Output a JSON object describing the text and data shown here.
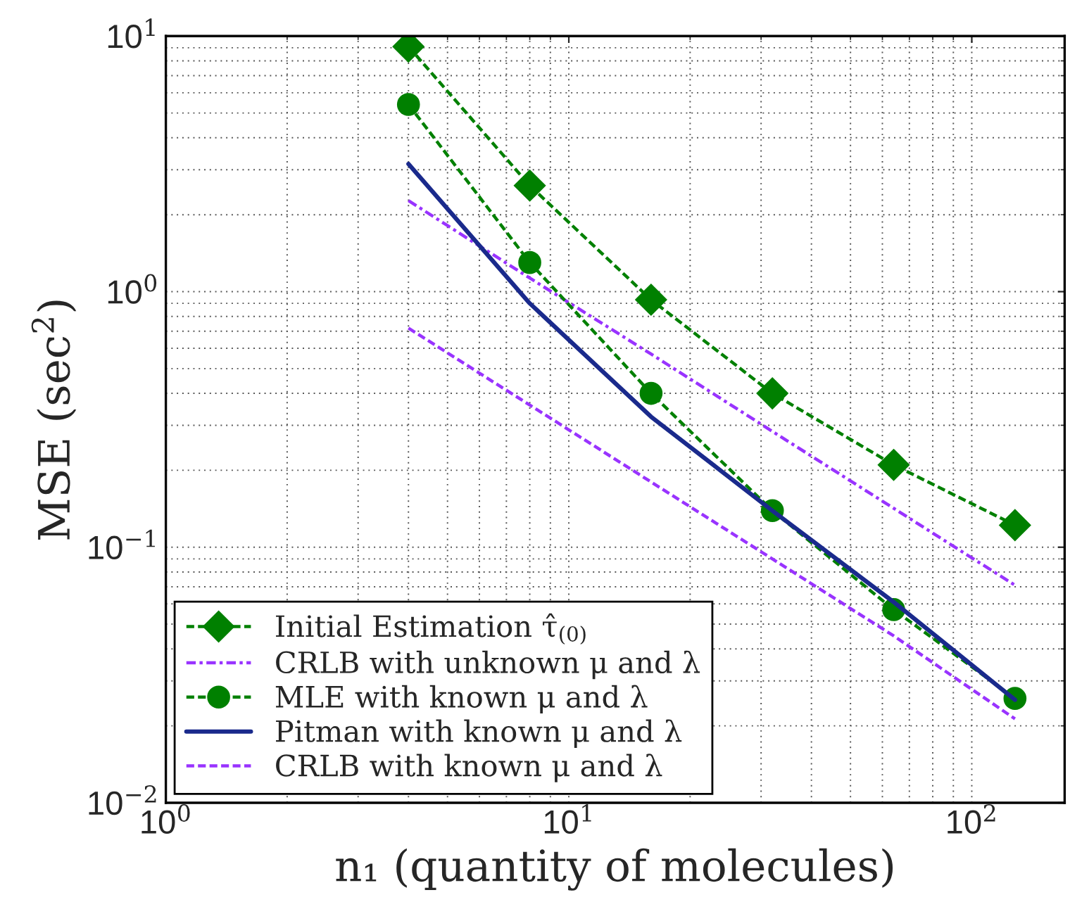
{
  "chart_data": {
    "type": "line",
    "xlabel": "n₁ (quantity of molecules)",
    "ylabel": "MSE (sec$^{2}$)",
    "x": [
      4,
      8,
      16,
      32,
      64,
      128
    ],
    "series": [
      {
        "name": "Initial Estimation τ̂$_{(0)}$",
        "color": "#008000",
        "marker": "diamond",
        "line_style": "dashed",
        "values": [
          9.1,
          2.6,
          0.93,
          0.4,
          0.21,
          0.122
        ]
      },
      {
        "name": "CRLB with unknown μ and λ",
        "color": "#9933ff",
        "marker": "none",
        "line_style": "dashdot",
        "values": [
          2.27,
          1.13,
          0.57,
          0.284,
          0.142,
          0.071
        ]
      },
      {
        "name": "MLE with known μ and λ",
        "color": "#008000",
        "marker": "circle",
        "line_style": "dashed",
        "values": [
          5.4,
          1.3,
          0.4,
          0.139,
          0.057,
          0.0256
        ]
      },
      {
        "name": "Pitman with known μ and λ",
        "color": "#1a2a8c",
        "marker": "none",
        "line_style": "solid",
        "values": [
          3.16,
          0.9,
          0.324,
          0.139,
          0.061,
          0.0253
        ]
      },
      {
        "name": "CRLB with known μ and λ",
        "color": "#9933ff",
        "marker": "none",
        "line_style": "dashed",
        "values": [
          0.72,
          0.36,
          0.18,
          0.09,
          0.045,
          0.0213
        ]
      }
    ],
    "log": "xy",
    "xlim": [
      1,
      170
    ],
    "ylim": [
      0.01,
      10
    ],
    "xticks": [
      {
        "value": 1,
        "label": "10$^{0}$"
      },
      {
        "value": 10,
        "label": "10$^{1}$"
      },
      {
        "value": 100,
        "label": "10$^{2}$"
      }
    ],
    "yticks": [
      {
        "value": 0.01,
        "label": "10$^{−2}$"
      },
      {
        "value": 0.1,
        "label": "10$^{−1}$"
      },
      {
        "value": 1,
        "label": "10$^{0}$"
      },
      {
        "value": 10,
        "label": "10$^{1}$"
      }
    ],
    "grid": true,
    "legend": "bottom left"
  }
}
